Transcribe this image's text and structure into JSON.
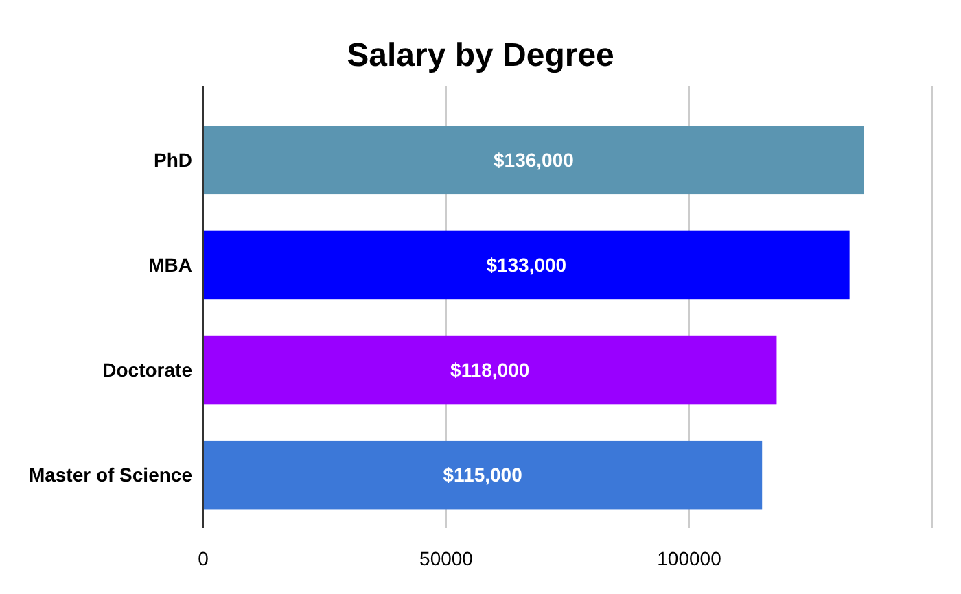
{
  "chart_data": {
    "type": "bar",
    "orientation": "horizontal",
    "title": "Salary by Degree",
    "categories": [
      "PhD",
      "MBA",
      "Doctorate",
      "Master of Science"
    ],
    "values": [
      136000,
      133000,
      118000,
      115000
    ],
    "colors": [
      "#5b95b1",
      "#0000ff",
      "#9900ff",
      "#3c78d8"
    ],
    "value_labels": [
      "$136,000",
      "$133,000",
      "$118,000",
      "$115,000"
    ],
    "xlim": [
      0,
      150000
    ],
    "xticks": [
      0,
      50000,
      100000,
      {
        "value": 150000,
        "label": null
      }
    ],
    "grid": "x"
  }
}
